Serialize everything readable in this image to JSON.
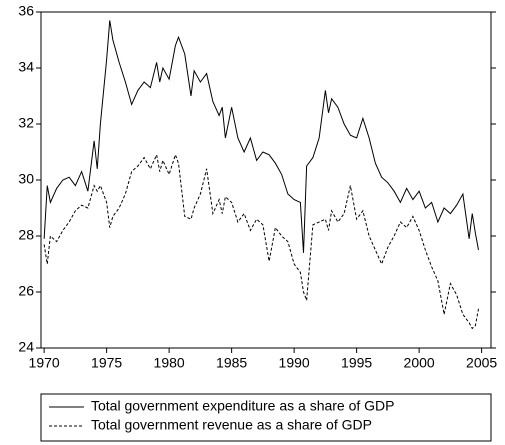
{
  "chart_data": {
    "type": "line",
    "x": [
      1970,
      1970.25,
      1970.5,
      1971,
      1971.5,
      1972,
      1972.5,
      1973,
      1973.5,
      1974,
      1974.25,
      1974.5,
      1975,
      1975.25,
      1975.5,
      1976,
      1976.5,
      1977,
      1977.5,
      1978,
      1978.5,
      1979,
      1979.25,
      1979.5,
      1980,
      1980.5,
      1980.75,
      1981.25,
      1981.75,
      1982,
      1982.5,
      1983,
      1983.5,
      1984,
      1984.25,
      1984.5,
      1985,
      1985.5,
      1986,
      1986.5,
      1987,
      1987.5,
      1988,
      1988.5,
      1989,
      1989.5,
      1990,
      1990.5,
      1990.75,
      1991,
      1991.5,
      1992,
      1992.5,
      1992.75,
      1993,
      1993.5,
      1994,
      1994.5,
      1995,
      1995.5,
      1996,
      1996.5,
      1997,
      1997.5,
      1998,
      1998.5,
      1999,
      1999.5,
      2000,
      2000.5,
      2001,
      2001.5,
      2002,
      2002.5,
      2003,
      2003.5,
      2004,
      2004.25,
      2004.5,
      2004.75
    ],
    "series": [
      {
        "name": "Total government expenditure as a share of GDP",
        "color": "#000000",
        "line_style": "solid",
        "values": [
          27.9,
          29.8,
          29.2,
          29.7,
          30.0,
          30.1,
          29.8,
          30.3,
          29.6,
          31.4,
          30.4,
          32.0,
          34.3,
          35.7,
          35.0,
          34.2,
          33.5,
          32.7,
          33.2,
          33.5,
          33.3,
          34.2,
          33.5,
          34.0,
          33.6,
          34.8,
          35.1,
          34.5,
          33.0,
          33.9,
          33.5,
          33.8,
          32.8,
          32.3,
          32.6,
          31.5,
          32.6,
          31.5,
          31.0,
          31.5,
          30.7,
          31.0,
          30.9,
          30.6,
          30.2,
          29.5,
          29.3,
          29.2,
          27.4,
          30.5,
          30.8,
          31.5,
          33.2,
          32.4,
          32.9,
          32.6,
          32.0,
          31.6,
          31.5,
          32.2,
          31.5,
          30.6,
          30.1,
          29.9,
          29.6,
          29.2,
          29.7,
          29.3,
          29.6,
          29.0,
          29.2,
          28.5,
          29.0,
          28.8,
          29.1,
          29.5,
          27.9,
          28.8,
          28.1,
          27.5
        ]
      },
      {
        "name": "Total government revenue as a share of GDP",
        "color": "#000000",
        "line_style": "dashed",
        "values": [
          27.7,
          27.0,
          28.0,
          27.8,
          28.2,
          28.5,
          28.9,
          29.1,
          29.0,
          29.8,
          29.6,
          29.8,
          29.2,
          28.3,
          28.7,
          29.0,
          29.5,
          30.3,
          30.5,
          30.8,
          30.4,
          30.9,
          30.3,
          30.7,
          30.2,
          30.9,
          30.6,
          28.7,
          28.6,
          29.0,
          29.5,
          30.4,
          28.8,
          29.3,
          28.8,
          29.4,
          29.2,
          28.5,
          28.8,
          28.2,
          28.6,
          28.4,
          27.1,
          28.3,
          28.0,
          27.8,
          27.0,
          26.7,
          26.0,
          25.7,
          28.4,
          28.5,
          28.6,
          28.2,
          28.9,
          28.5,
          28.8,
          29.8,
          28.6,
          28.9,
          28.0,
          27.5,
          27.0,
          27.6,
          28.0,
          28.5,
          28.3,
          28.7,
          28.2,
          27.5,
          26.9,
          26.4,
          25.2,
          26.3,
          25.9,
          25.2,
          24.9,
          24.7,
          24.8,
          25.4
        ]
      }
    ],
    "xlim": [
      1969.75,
      2005.75
    ],
    "xticks": [
      1970,
      1975,
      1980,
      1985,
      1990,
      1995,
      2000,
      2005
    ],
    "ylim": [
      24,
      36
    ],
    "yticks": [
      24,
      26,
      28,
      30,
      32,
      34,
      36
    ],
    "grid": false,
    "legend": "bottom"
  }
}
